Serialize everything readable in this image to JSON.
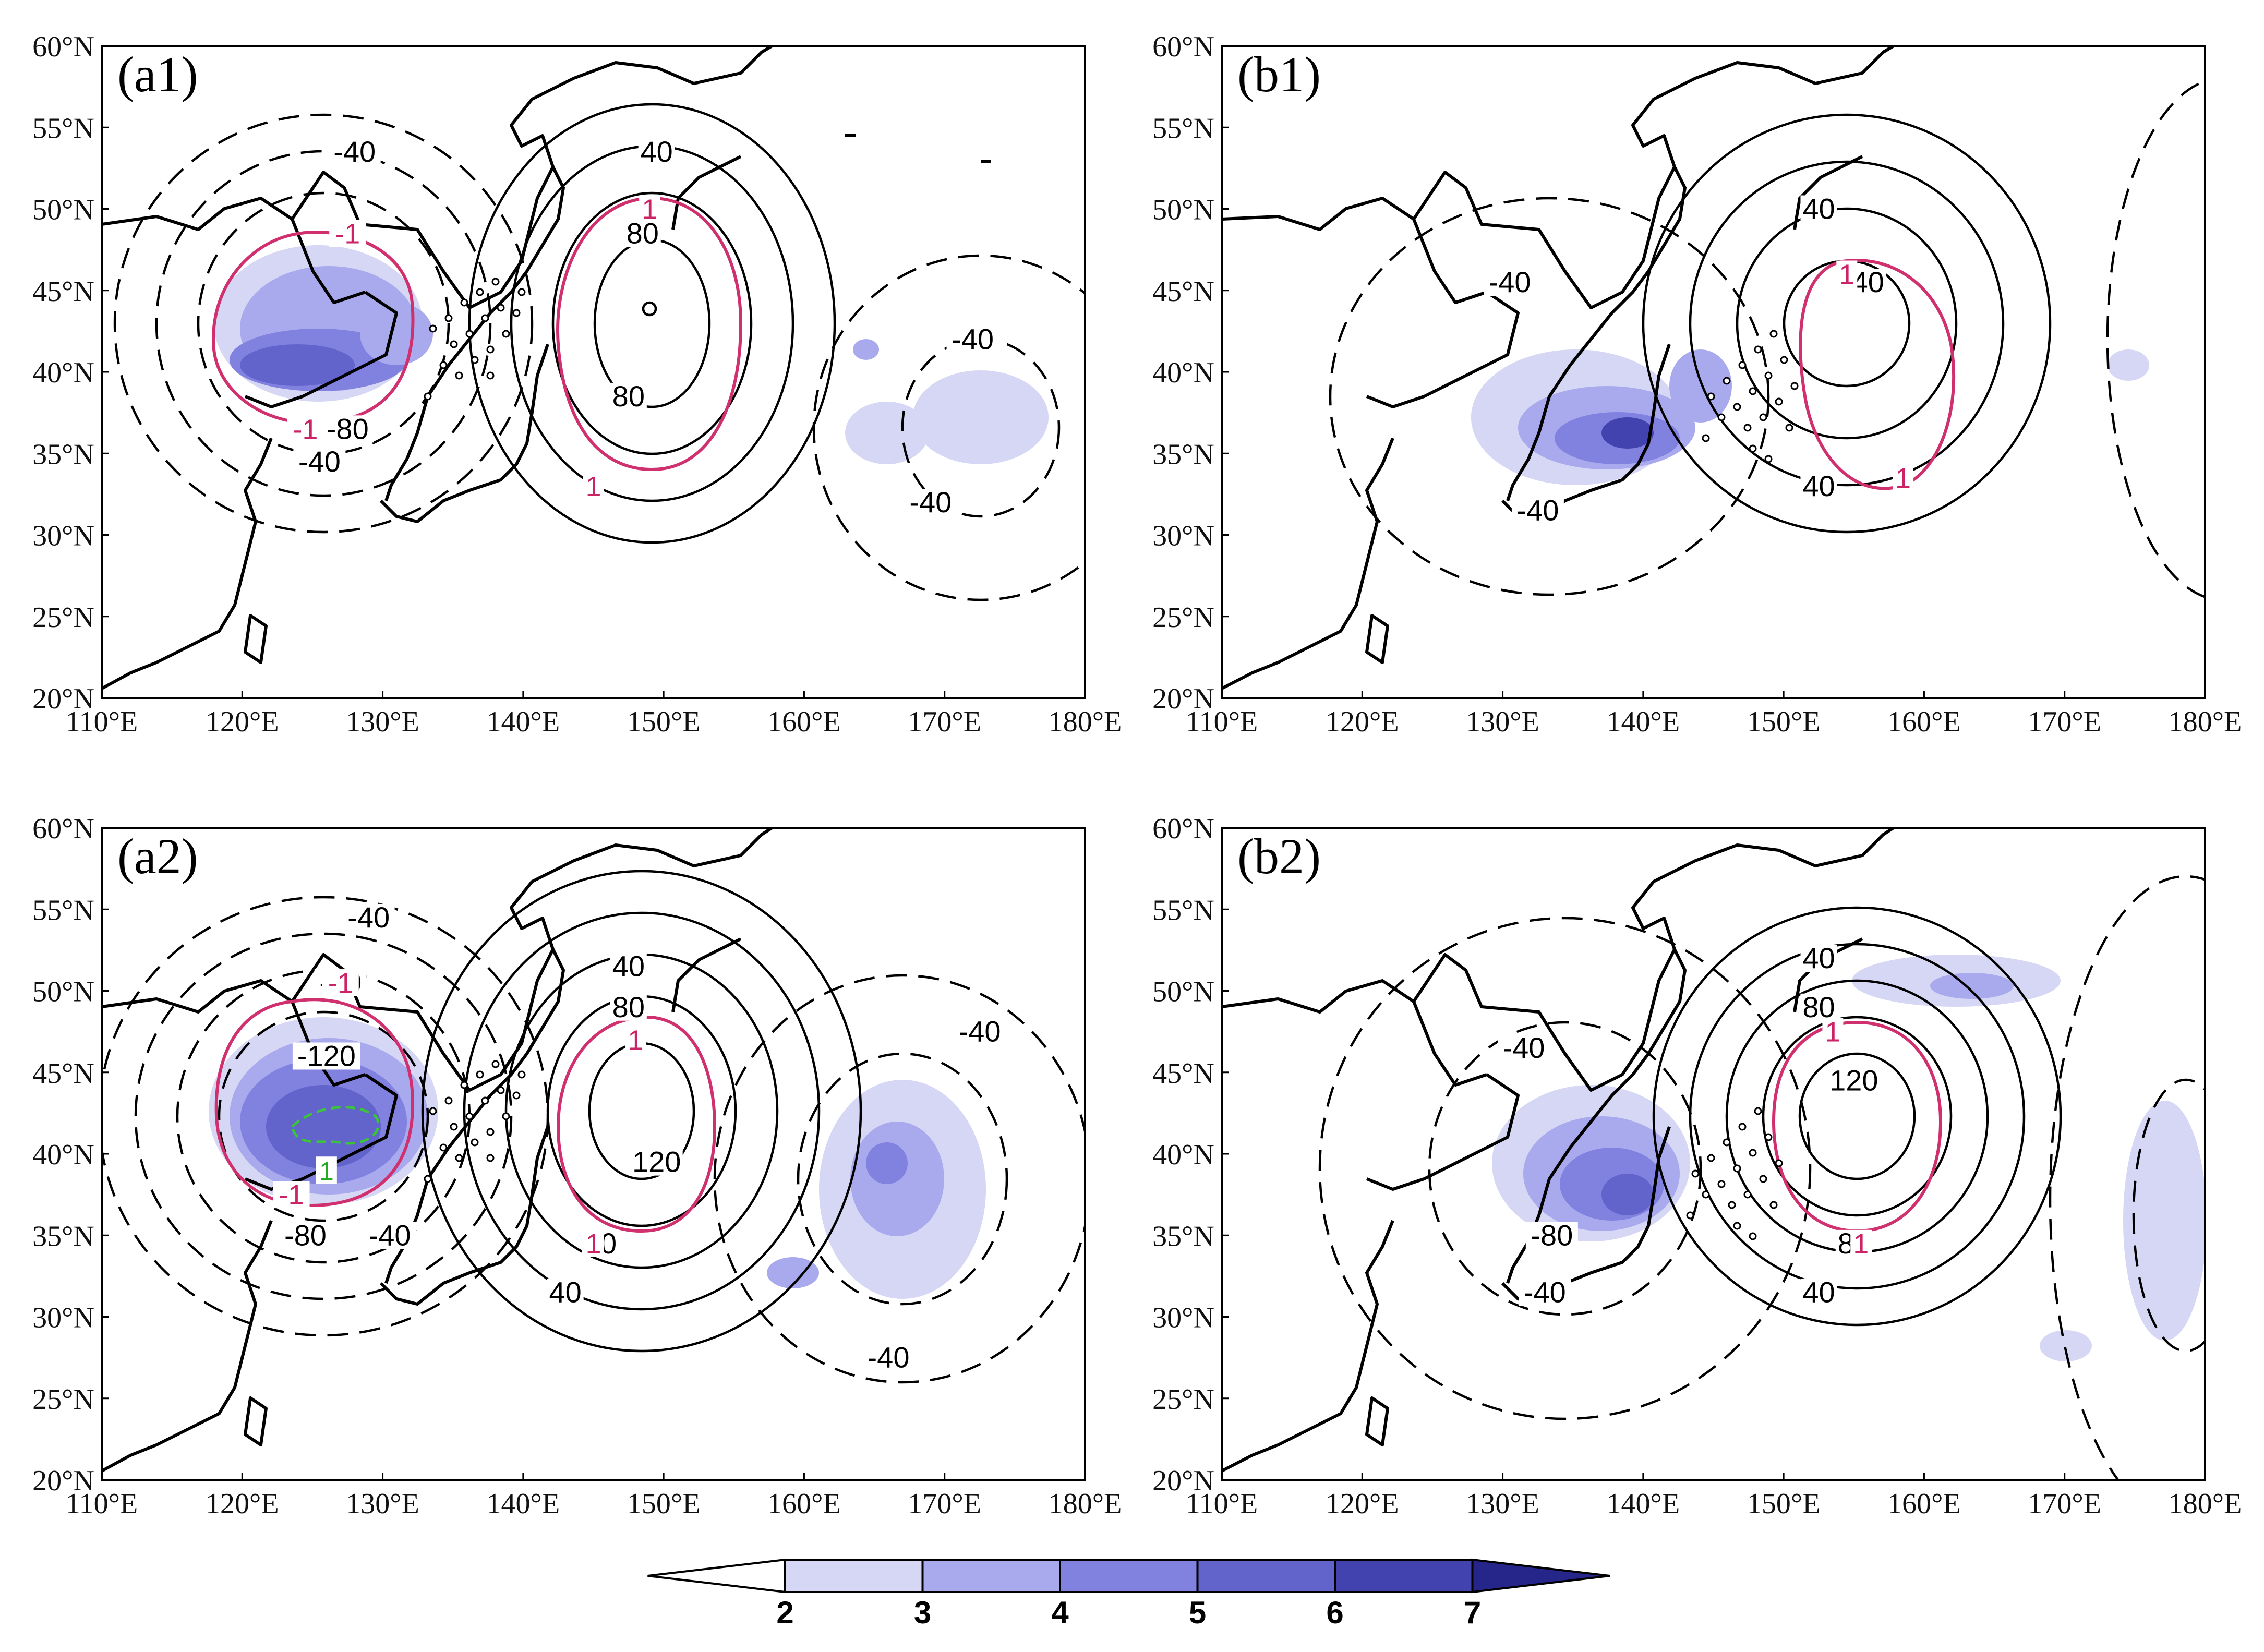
{
  "colors": {
    "shade_levels": [
      "#d6d6f5",
      "#a9a9ee",
      "#8181e0",
      "#6363cc",
      "#4343b0",
      "#26268a"
    ],
    "positive_contour": "#000000",
    "negative_contour": "#000000",
    "pink_contour": "#d0306e",
    "green_contour": "#3cc33c",
    "coast": "#000000"
  },
  "axes": {
    "lon_ticks": [
      "110°E",
      "120°E",
      "130°E",
      "140°E",
      "150°E",
      "160°E",
      "170°E",
      "180°E"
    ],
    "lat_ticks": [
      "60°N",
      "55°N",
      "50°N",
      "45°N",
      "40°N",
      "35°N",
      "30°N",
      "25°N",
      "20°N"
    ],
    "lon_values": [
      110,
      120,
      130,
      140,
      150,
      160,
      170,
      180
    ],
    "lat_values": [
      60,
      55,
      50,
      45,
      40,
      35,
      30,
      25,
      20
    ],
    "lon_range": [
      110,
      180
    ],
    "lat_range": [
      20,
      60
    ]
  },
  "colorbar": {
    "labels": [
      "2",
      "3",
      "4",
      "5",
      "6",
      "7"
    ],
    "levels": [
      2,
      3,
      4,
      5,
      6,
      7
    ]
  },
  "chart_data": [
    {
      "panel": "(a1)",
      "contour_labels": [
        {
          "text": "-40",
          "lon": 128,
          "lat": 53.5
        },
        {
          "text": "-80",
          "lon": 127.5,
          "lat": 36.5
        },
        {
          "text": "-40",
          "lon": 125.5,
          "lat": 34.5
        },
        {
          "text": "40",
          "lon": 149.5,
          "lat": 53.5
        },
        {
          "text": "80",
          "lon": 148.5,
          "lat": 48.5
        },
        {
          "text": "80",
          "lon": 147.5,
          "lat": 38.5
        },
        {
          "text": "-40",
          "lon": 172,
          "lat": 42
        },
        {
          "text": "-40",
          "lon": 169,
          "lat": 32
        }
      ],
      "pink_labels": [
        {
          "text": "-1",
          "lon": 127.5,
          "lat": 48.5
        },
        {
          "text": "-1",
          "lon": 124.5,
          "lat": 36.5
        },
        {
          "text": "1",
          "lon": 149,
          "lat": 50
        },
        {
          "text": "1",
          "lon": 145,
          "lat": 33
        }
      ]
    },
    {
      "panel": "(b1)",
      "contour_labels": [
        {
          "text": "-40",
          "lon": 130.5,
          "lat": 45.5
        },
        {
          "text": "-40",
          "lon": 132.5,
          "lat": 31.5
        },
        {
          "text": "40",
          "lon": 152.5,
          "lat": 50
        },
        {
          "text": "40",
          "lon": 152.5,
          "lat": 33
        },
        {
          "text": "40",
          "lon": 156,
          "lat": 45.5
        }
      ],
      "pink_labels": [
        {
          "text": "1",
          "lon": 154.5,
          "lat": 46
        },
        {
          "text": "1",
          "lon": 158.5,
          "lat": 33.5
        }
      ]
    },
    {
      "panel": "(a2)",
      "contour_labels": [
        {
          "text": "-40",
          "lon": 129,
          "lat": 54.5
        },
        {
          "text": "-80",
          "lon": 127,
          "lat": 50.5
        },
        {
          "text": "-120",
          "lon": 126,
          "lat": 46
        },
        {
          "text": "-80",
          "lon": 124.5,
          "lat": 35
        },
        {
          "text": "-40",
          "lon": 130.5,
          "lat": 35
        },
        {
          "text": "40",
          "lon": 147.5,
          "lat": 51.5
        },
        {
          "text": "80",
          "lon": 147.5,
          "lat": 49
        },
        {
          "text": "120",
          "lon": 149.5,
          "lat": 39.5
        },
        {
          "text": "80",
          "lon": 145.5,
          "lat": 34.5
        },
        {
          "text": "40",
          "lon": 143,
          "lat": 31.5
        },
        {
          "text": "-40",
          "lon": 172.5,
          "lat": 47.5
        },
        {
          "text": "-40",
          "lon": 166,
          "lat": 27.5
        }
      ],
      "pink_labels": [
        {
          "text": "-1",
          "lon": 127,
          "lat": 50.5
        },
        {
          "text": "-1",
          "lon": 123.5,
          "lat": 37.5
        },
        {
          "text": "1",
          "lon": 148,
          "lat": 47
        },
        {
          "text": "1",
          "lon": 145,
          "lat": 34.5
        }
      ],
      "green_labels": [
        {
          "text": "1",
          "lon": 126,
          "lat": 39
        }
      ]
    },
    {
      "panel": "(b2)",
      "contour_labels": [
        {
          "text": "-40",
          "lon": 131.5,
          "lat": 46.5
        },
        {
          "text": "-80",
          "lon": 133.5,
          "lat": 35
        },
        {
          "text": "-40",
          "lon": 133,
          "lat": 31.5
        },
        {
          "text": "40",
          "lon": 152.5,
          "lat": 52
        },
        {
          "text": "80",
          "lon": 152.5,
          "lat": 49
        },
        {
          "text": "120",
          "lon": 155,
          "lat": 44.5
        },
        {
          "text": "80",
          "lon": 155,
          "lat": 34.5
        },
        {
          "text": "40",
          "lon": 152.5,
          "lat": 31.5
        }
      ],
      "pink_labels": [
        {
          "text": "1",
          "lon": 153.5,
          "lat": 47.5
        },
        {
          "text": "1",
          "lon": 155.5,
          "lat": 34.5
        }
      ]
    }
  ]
}
